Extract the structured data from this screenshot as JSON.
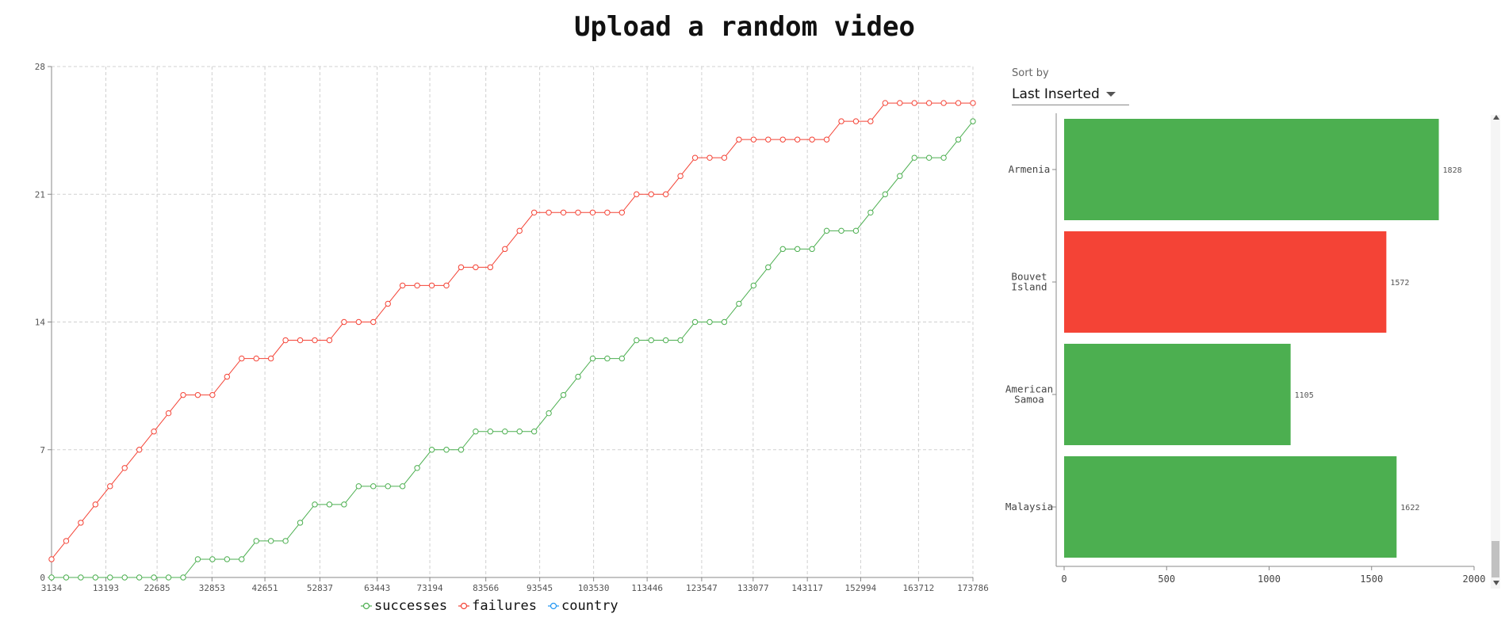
{
  "title": "Upload a random video",
  "legend": [
    {
      "label": "successes",
      "color": "#4caf50"
    },
    {
      "label": "failures",
      "color": "#f44336"
    },
    {
      "label": "country",
      "color": "#2196f3"
    }
  ],
  "sort": {
    "label": "Sort by",
    "value": "Last Inserted"
  },
  "chart_data": [
    {
      "type": "line",
      "xlabel": "",
      "ylabel": "",
      "xlim": [
        3134,
        173786
      ],
      "ylim": [
        0,
        28
      ],
      "grid": true,
      "legend_position": "bottom-center",
      "x_ticks": [
        3134,
        13193,
        22685,
        32853,
        42651,
        52837,
        63443,
        73194,
        83566,
        93545,
        103530,
        113446,
        123547,
        133077,
        143117,
        152994,
        163712,
        173786
      ],
      "y_ticks": [
        0,
        7,
        14,
        21,
        28
      ],
      "series": [
        {
          "name": "successes",
          "color": "#4caf50",
          "values": [
            0,
            0,
            0,
            0,
            0,
            0,
            0,
            0,
            0,
            0,
            1,
            1,
            1,
            1,
            2,
            2,
            2,
            3,
            4,
            4,
            4,
            5,
            5,
            5,
            5,
            6,
            7,
            7,
            7,
            8,
            8,
            8,
            8,
            8,
            9,
            10,
            11,
            12,
            12,
            12,
            13,
            13,
            13,
            13,
            14,
            14,
            14,
            15,
            16,
            17,
            18,
            18,
            18,
            19,
            19,
            19,
            20,
            21,
            22,
            23,
            23,
            23,
            24,
            25
          ]
        },
        {
          "name": "failures",
          "color": "#f44336",
          "values": [
            1,
            2,
            3,
            4,
            5,
            6,
            7,
            8,
            9,
            10,
            10,
            10,
            11,
            12,
            12,
            12,
            13,
            13,
            13,
            13,
            14,
            14,
            14,
            15,
            16,
            16,
            16,
            16,
            17,
            17,
            17,
            18,
            19,
            20,
            20,
            20,
            20,
            20,
            20,
            20,
            21,
            21,
            21,
            22,
            23,
            23,
            23,
            24,
            24,
            24,
            24,
            24,
            24,
            24,
            25,
            25,
            25,
            26,
            26,
            26,
            26,
            26,
            26,
            26
          ]
        }
      ]
    },
    {
      "type": "bar",
      "orientation": "horizontal",
      "categories": [
        "Armenia",
        "Bouvet Island",
        "American Samoa",
        "Malaysia"
      ],
      "values": [
        1828,
        1572,
        1105,
        1622
      ],
      "colors": [
        "#4caf50",
        "#f44336",
        "#4caf50",
        "#4caf50"
      ],
      "xlim": [
        0,
        2000
      ],
      "x_ticks": [
        0,
        500,
        1000,
        1500,
        2000
      ]
    }
  ]
}
